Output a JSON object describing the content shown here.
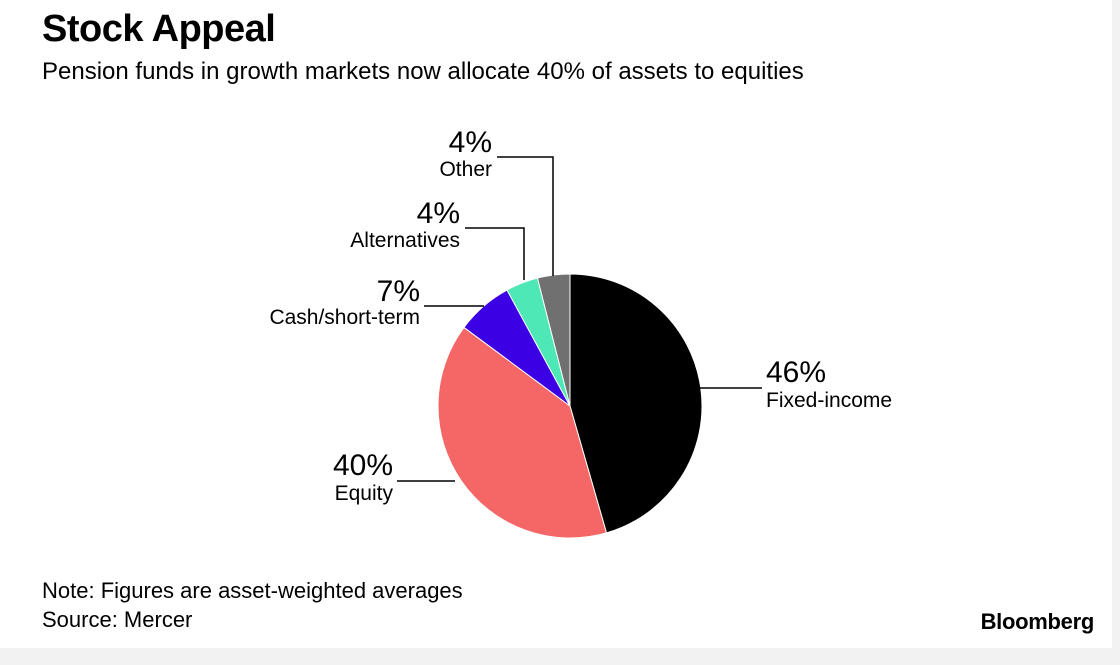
{
  "chart_data": {
    "type": "pie",
    "title": "Stock Appeal",
    "subtitle": "Pension funds in growth markets now allocate 40% of assets to equities",
    "slices": [
      {
        "label": "Fixed-income",
        "value": 46,
        "value_label": "46%",
        "color": "#000000"
      },
      {
        "label": "Equity",
        "value": 40,
        "value_label": "40%",
        "color": "#f46766"
      },
      {
        "label": "Cash/short-term",
        "value": 7,
        "value_label": "7%",
        "color": "#3b00e4"
      },
      {
        "label": "Alternatives",
        "value": 4,
        "value_label": "4%",
        "color": "#4de8b5"
      },
      {
        "label": "Other",
        "value": 4,
        "value_label": "4%",
        "color": "#707070"
      }
    ]
  },
  "footer": {
    "note": "Note: Figures are asset-weighted averages",
    "source": "Source: Mercer",
    "brand": "Bloomberg"
  }
}
